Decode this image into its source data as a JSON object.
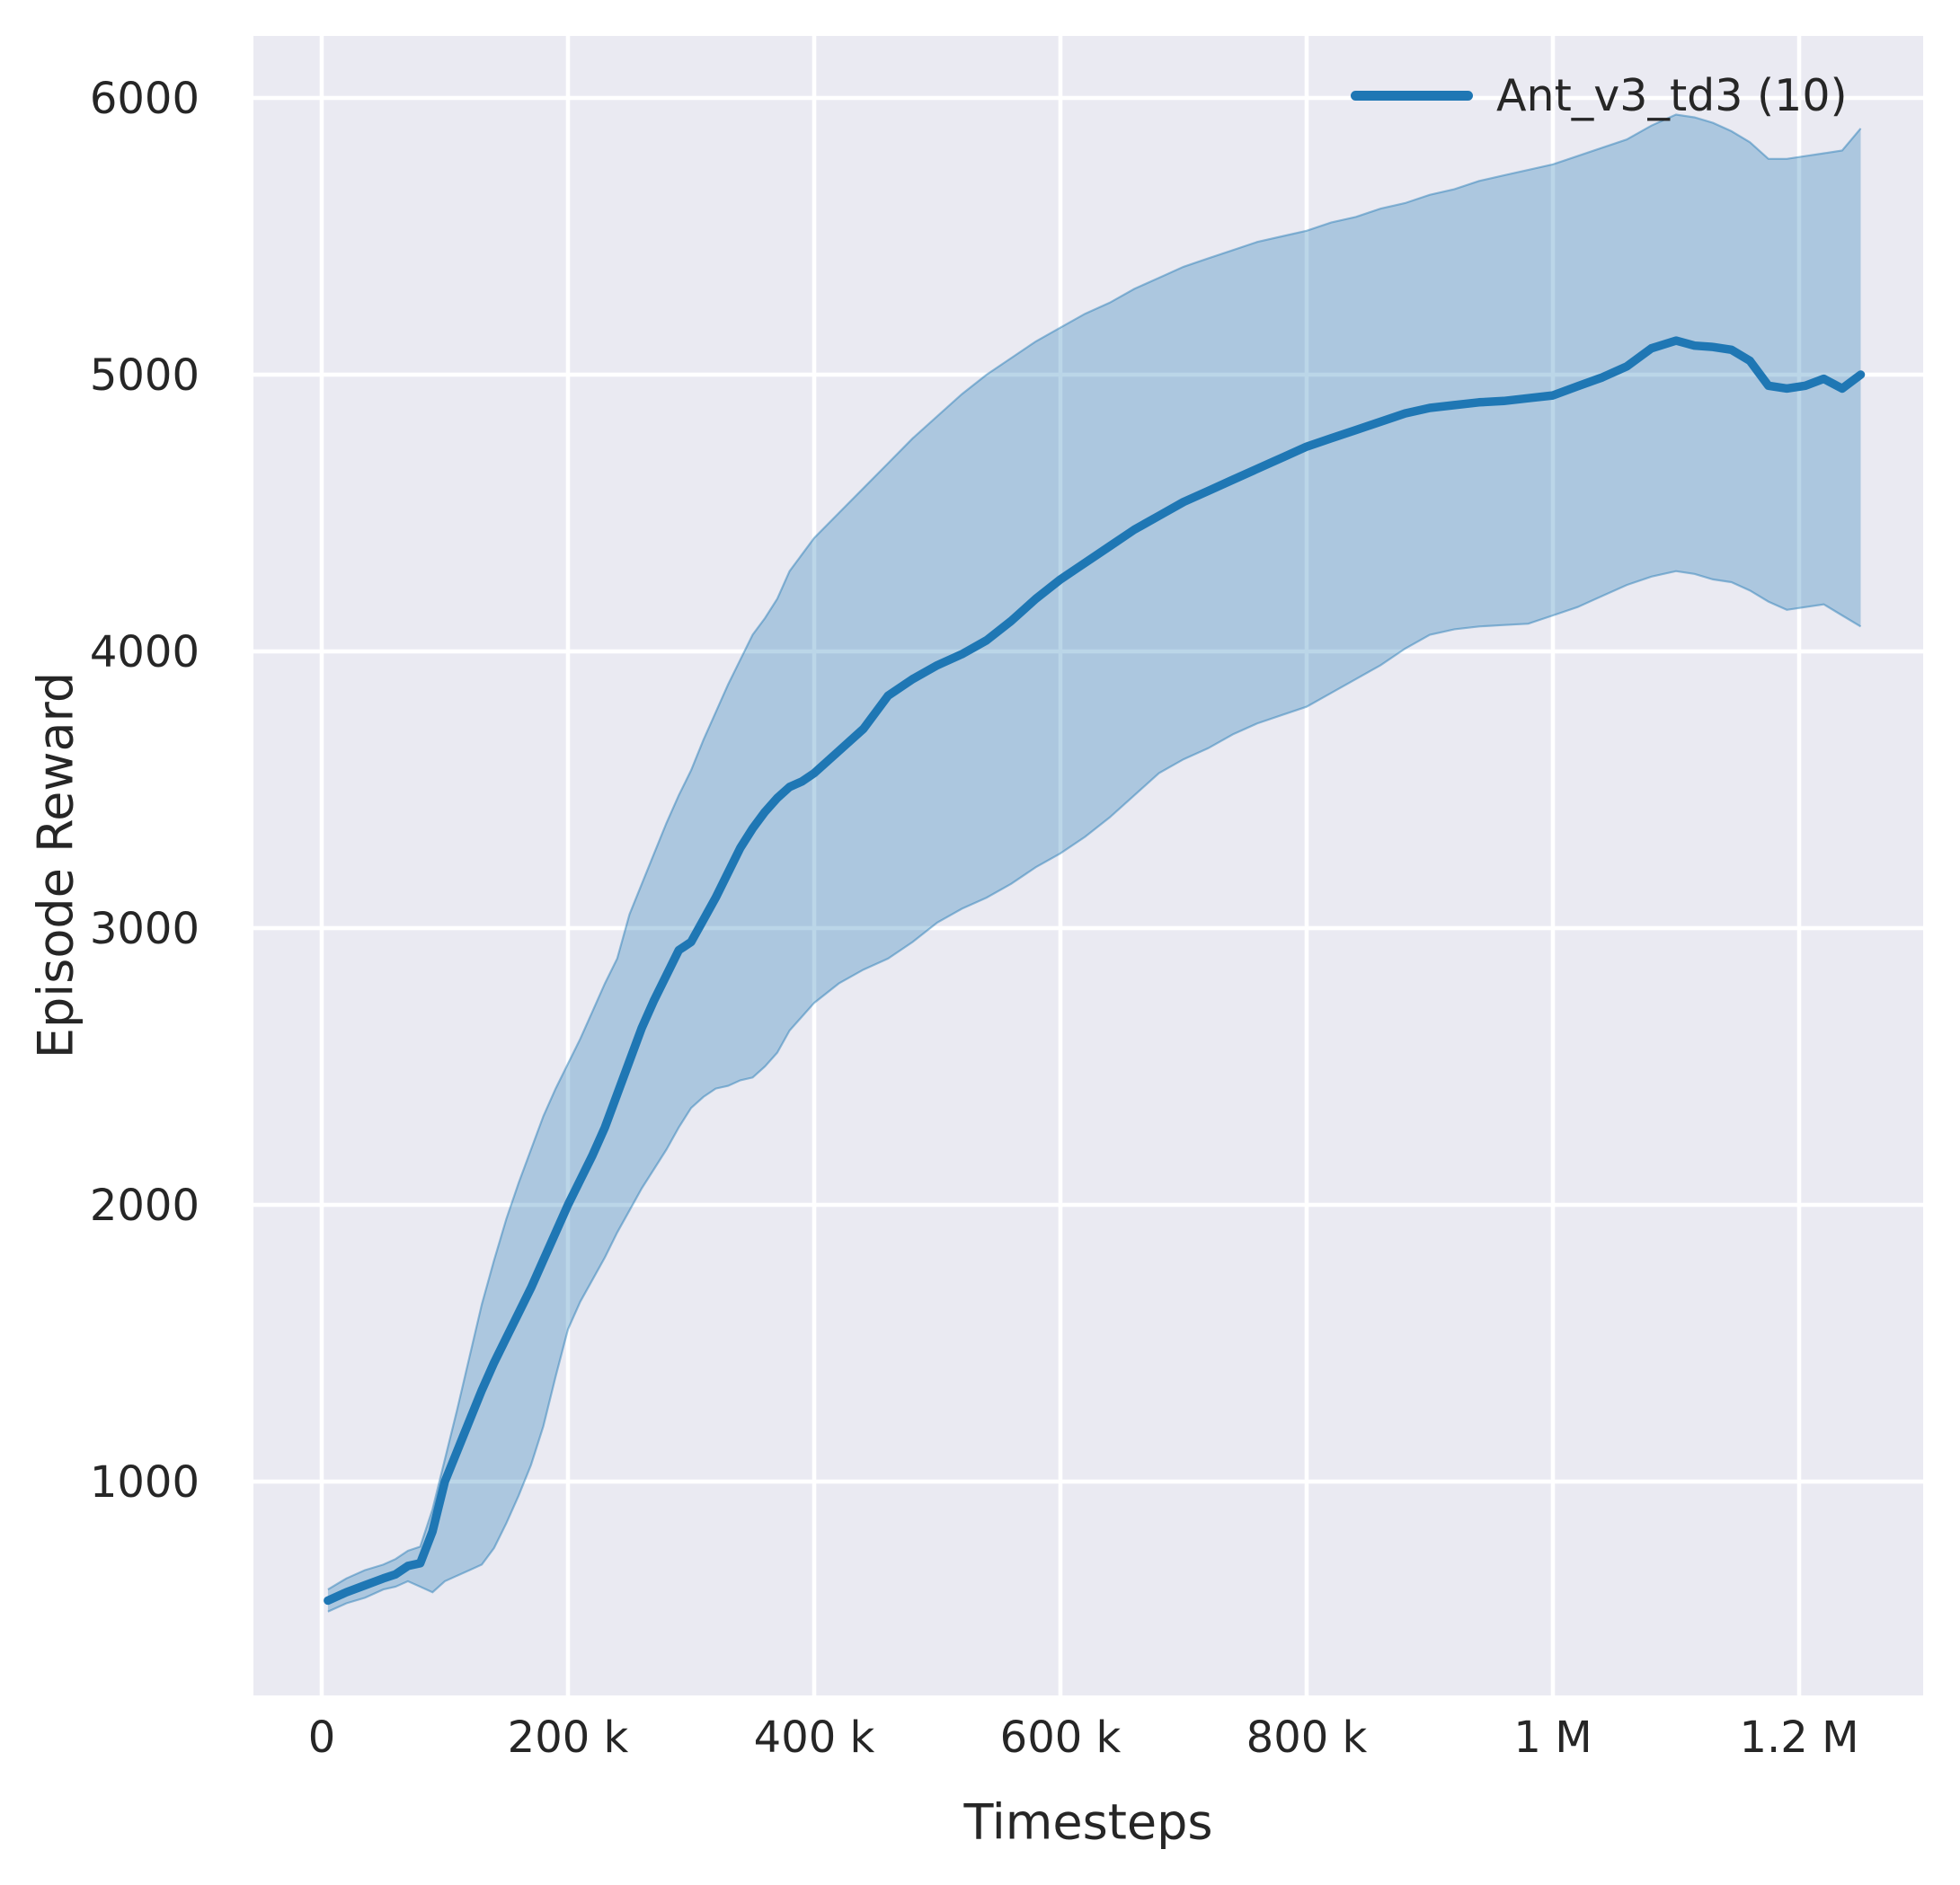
{
  "figure": {
    "background": "#ffffff"
  },
  "axes": {
    "background": "#eaeaf2",
    "grid_color": "#ffffff",
    "text_color": "#262626",
    "x_label": "Timesteps",
    "y_label": "Episode Reward",
    "x_ticks": [
      {
        "t_k": 0,
        "label": "0"
      },
      {
        "t_k": 200,
        "label": "200 k"
      },
      {
        "t_k": 400,
        "label": "400 k"
      },
      {
        "t_k": 600,
        "label": "600 k"
      },
      {
        "t_k": 800,
        "label": "800 k"
      },
      {
        "t_k": 1000,
        "label": "1 M"
      },
      {
        "t_k": 1200,
        "label": "1.2 M"
      }
    ],
    "y_ticks": [
      {
        "v": 1000,
        "label": "1000"
      },
      {
        "v": 2000,
        "label": "2000"
      },
      {
        "v": 3000,
        "label": "3000"
      },
      {
        "v": 4000,
        "label": "4000"
      },
      {
        "v": 5000,
        "label": "5000"
      },
      {
        "v": 6000,
        "label": "6000"
      }
    ]
  },
  "legend": {
    "entries": [
      {
        "label": "Ant_v3_td3 (10)",
        "color": "#1f77b4"
      }
    ]
  },
  "chart_data": {
    "type": "line",
    "title": "",
    "xlabel": "Timesteps",
    "ylabel": "Episode Reward",
    "grid": true,
    "legend_position": "upper right",
    "xlim_timesteps": [
      -55000,
      1301000
    ],
    "ylim": [
      230,
      6220
    ],
    "band_opacity": 0.3,
    "series": [
      {
        "name": "Ant_v3_td3 (10)",
        "color": "#1f77b4",
        "x_thousands": [
          5,
          20,
          35,
          50,
          60,
          70,
          80,
          90,
          100,
          110,
          120,
          130,
          140,
          150,
          160,
          170,
          180,
          190,
          200,
          210,
          220,
          230,
          240,
          250,
          260,
          270,
          280,
          290,
          300,
          310,
          320,
          330,
          340,
          350,
          360,
          370,
          380,
          390,
          400,
          420,
          440,
          460,
          480,
          500,
          520,
          540,
          560,
          580,
          600,
          620,
          640,
          660,
          680,
          700,
          720,
          740,
          760,
          780,
          800,
          820,
          840,
          860,
          880,
          900,
          920,
          940,
          960,
          980,
          1000,
          1020,
          1040,
          1060,
          1080,
          1100,
          1115,
          1130,
          1145,
          1160,
          1175,
          1190,
          1205,
          1220,
          1235,
          1250
        ],
        "mean": [
          570,
          600,
          625,
          650,
          665,
          695,
          705,
          820,
          1000,
          1110,
          1220,
          1330,
          1430,
          1520,
          1610,
          1700,
          1800,
          1900,
          2000,
          2090,
          2180,
          2280,
          2400,
          2520,
          2640,
          2740,
          2830,
          2920,
          2950,
          3030,
          3110,
          3200,
          3290,
          3360,
          3420,
          3470,
          3510,
          3530,
          3560,
          3640,
          3720,
          3840,
          3900,
          3950,
          3990,
          4040,
          4110,
          4190,
          4260,
          4320,
          4380,
          4440,
          4490,
          4540,
          4580,
          4620,
          4660,
          4700,
          4740,
          4770,
          4800,
          4830,
          4860,
          4880,
          4890,
          4900,
          4905,
          4915,
          4925,
          4958,
          4990,
          5030,
          5095,
          5123,
          5105,
          5100,
          5090,
          5050,
          4960,
          4950,
          4960,
          4985,
          4950,
          5000
        ],
        "band_upper": [
          610,
          650,
          680,
          700,
          720,
          750,
          765,
          900,
          1080,
          1260,
          1450,
          1640,
          1800,
          1950,
          2080,
          2200,
          2320,
          2420,
          2510,
          2600,
          2700,
          2800,
          2890,
          3050,
          3160,
          3270,
          3380,
          3480,
          3570,
          3680,
          3780,
          3880,
          3970,
          4060,
          4120,
          4190,
          4290,
          4350,
          4410,
          4500,
          4590,
          4680,
          4770,
          4850,
          4930,
          5000,
          5060,
          5120,
          5170,
          5220,
          5260,
          5310,
          5350,
          5390,
          5420,
          5450,
          5480,
          5500,
          5520,
          5550,
          5570,
          5600,
          5620,
          5650,
          5670,
          5700,
          5720,
          5740,
          5760,
          5790,
          5820,
          5850,
          5900,
          5940,
          5930,
          5910,
          5880,
          5840,
          5780,
          5780,
          5790,
          5800,
          5810,
          5890
        ],
        "band_lower": [
          530,
          560,
          580,
          610,
          620,
          640,
          620,
          600,
          640,
          660,
          680,
          700,
          760,
          850,
          950,
          1060,
          1200,
          1380,
          1550,
          1650,
          1730,
          1810,
          1900,
          1980,
          2060,
          2130,
          2200,
          2280,
          2350,
          2390,
          2420,
          2430,
          2450,
          2460,
          2500,
          2550,
          2630,
          2680,
          2730,
          2800,
          2850,
          2890,
          2950,
          3020,
          3070,
          3110,
          3160,
          3220,
          3270,
          3330,
          3400,
          3480,
          3560,
          3610,
          3650,
          3700,
          3740,
          3770,
          3800,
          3850,
          3900,
          3950,
          4010,
          4060,
          4080,
          4090,
          4095,
          4100,
          4130,
          4160,
          4200,
          4240,
          4270,
          4290,
          4280,
          4260,
          4250,
          4220,
          4180,
          4150,
          4160,
          4170,
          4130,
          4090
        ]
      }
    ]
  }
}
